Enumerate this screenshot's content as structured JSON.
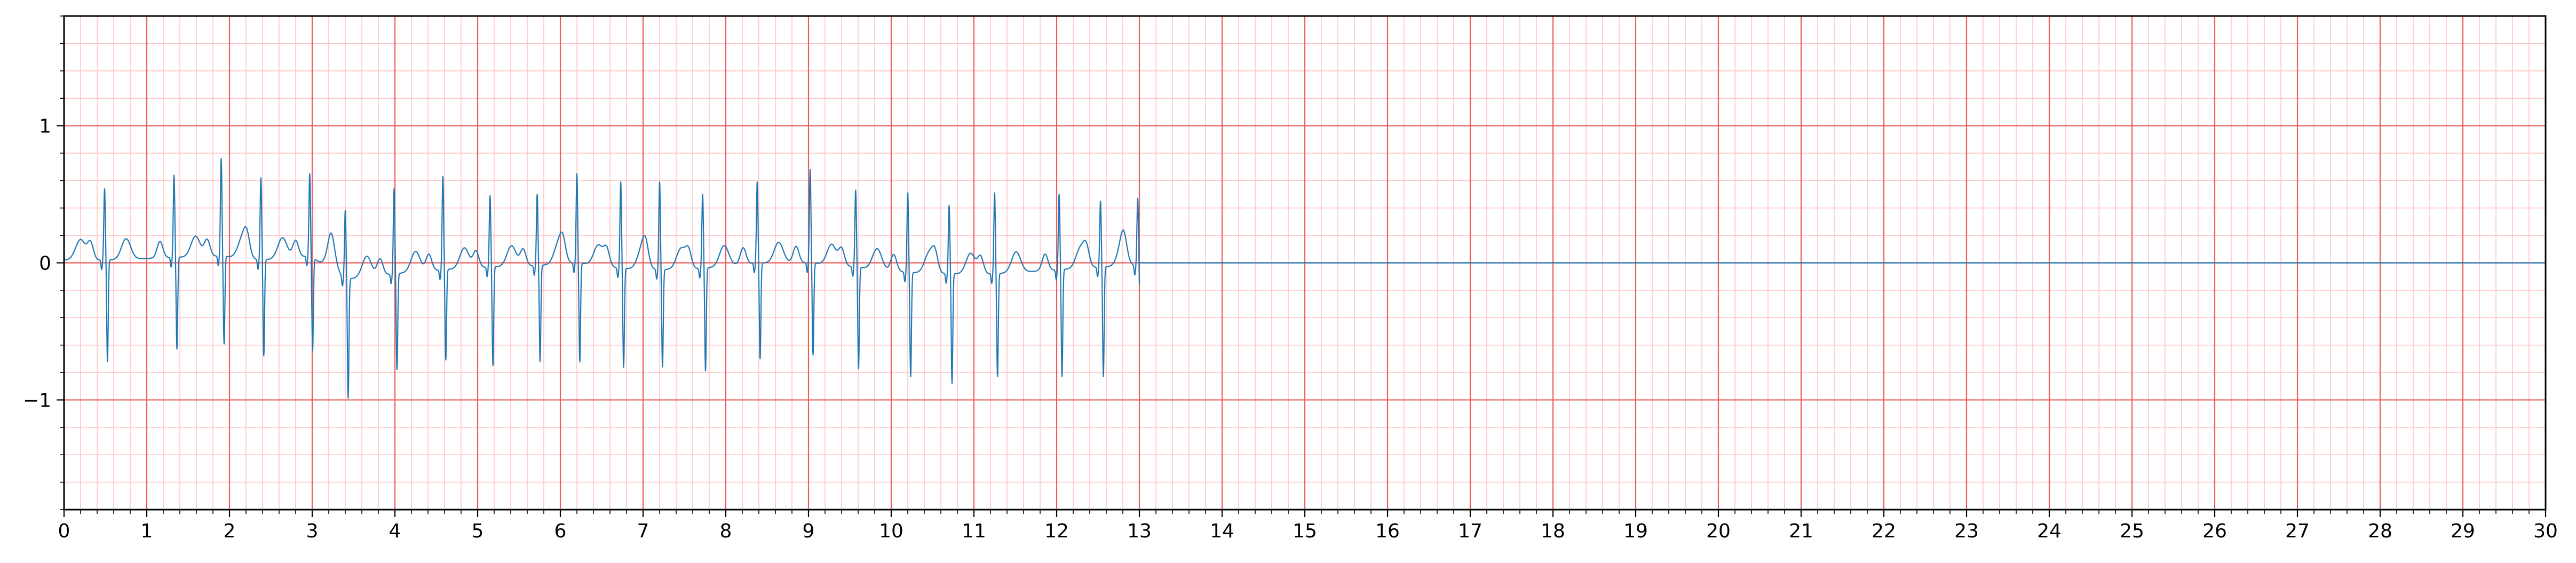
{
  "chart_data": {
    "type": "line",
    "title": "",
    "xlabel": "",
    "ylabel": "",
    "xlim": [
      0,
      30
    ],
    "ylim": [
      -1.8,
      1.8
    ],
    "grid": {
      "major": true,
      "minor": true,
      "major_x_step": 1,
      "major_y_step": 1,
      "minor_x_step": 0.2,
      "minor_y_step": 0.2
    },
    "x_ticks": [
      0,
      1,
      2,
      3,
      4,
      5,
      6,
      7,
      8,
      9,
      10,
      11,
      12,
      13,
      14,
      15,
      16,
      17,
      18,
      19,
      20,
      21,
      22,
      23,
      24,
      25,
      26,
      27,
      28,
      29,
      30
    ],
    "x_tick_labels": [
      "0",
      "1",
      "2",
      "3",
      "4",
      "5",
      "6",
      "7",
      "8",
      "9",
      "10",
      "11",
      "12",
      "13",
      "14",
      "15",
      "16",
      "17",
      "18",
      "19",
      "20",
      "21",
      "22",
      "23",
      "24",
      "25",
      "26",
      "27",
      "28",
      "29",
      "30"
    ],
    "y_ticks": [
      -1,
      0,
      1
    ],
    "y_tick_labels": [
      "−1",
      "0",
      "1"
    ],
    "signal_end": 13,
    "flat_value": 0,
    "series": [
      {
        "color": "#1f77b4",
        "beats": [
          {
            "t": 0.49,
            "r": 0.52,
            "s": -0.74,
            "base": 0.02
          },
          {
            "t": 1.33,
            "r": 0.6,
            "s": -0.67,
            "base": 0.04
          },
          {
            "t": 1.9,
            "r": 0.71,
            "s": -0.64,
            "base": 0.05
          },
          {
            "t": 2.38,
            "r": 0.6,
            "s": -0.7,
            "base": 0.02
          },
          {
            "t": 2.97,
            "r": 0.6,
            "s": -0.68,
            "base": 0.05
          },
          {
            "t": 3.4,
            "r": 0.5,
            "s": -0.87,
            "base": -0.12
          },
          {
            "t": 3.99,
            "r": 0.62,
            "s": -0.7,
            "base": -0.08
          },
          {
            "t": 4.58,
            "r": 0.68,
            "s": -0.66,
            "base": -0.05
          },
          {
            "t": 5.15,
            "r": 0.52,
            "s": -0.72,
            "base": -0.03
          },
          {
            "t": 5.72,
            "r": 0.52,
            "s": -0.7,
            "base": -0.02
          },
          {
            "t": 6.2,
            "r": 0.65,
            "s": -0.72,
            "base": 0.0
          },
          {
            "t": 6.73,
            "r": 0.63,
            "s": -0.72,
            "base": -0.04
          },
          {
            "t": 7.2,
            "r": 0.64,
            "s": -0.71,
            "base": -0.05
          },
          {
            "t": 7.72,
            "r": 0.54,
            "s": -0.75,
            "base": -0.04
          },
          {
            "t": 8.38,
            "r": 0.59,
            "s": -0.7,
            "base": 0.0
          },
          {
            "t": 9.02,
            "r": 0.68,
            "s": -0.67,
            "base": 0.0
          },
          {
            "t": 9.57,
            "r": 0.56,
            "s": -0.74,
            "base": -0.03
          },
          {
            "t": 10.2,
            "r": 0.58,
            "s": -0.76,
            "base": -0.07
          },
          {
            "t": 10.7,
            "r": 0.5,
            "s": -0.8,
            "base": -0.08
          },
          {
            "t": 11.25,
            "r": 0.59,
            "s": -0.75,
            "base": -0.08
          },
          {
            "t": 12.03,
            "r": 0.55,
            "s": -0.78,
            "base": -0.05
          },
          {
            "t": 12.53,
            "r": 0.48,
            "s": -0.8,
            "base": -0.03
          },
          {
            "t": 12.98,
            "r": 0.49,
            "s": -0.72,
            "base": -0.02
          }
        ]
      }
    ]
  }
}
